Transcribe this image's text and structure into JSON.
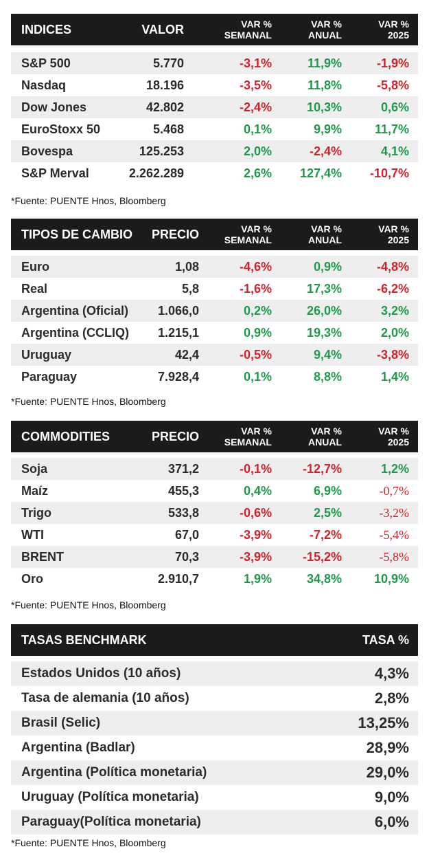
{
  "source_note": "*Fuente: PUENTE Hnos, Bloomberg",
  "indices": {
    "headers": {
      "name": "INDICES",
      "value": "VALOR",
      "weekly_1": "VAR %",
      "weekly_2": "SEMANAL",
      "annual_1": "VAR %",
      "annual_2": "ANUAL",
      "ytd_1": "VAR %",
      "ytd_2": "2025"
    },
    "rows": [
      {
        "name": "S&P 500",
        "value": "5.770",
        "weekly": "-3,1%",
        "annual": "11,9%",
        "ytd": "-1,9%"
      },
      {
        "name": "Nasdaq",
        "value": "18.196",
        "weekly": "-3,5%",
        "annual": "11,8%",
        "ytd": "-5,8%"
      },
      {
        "name": "Dow Jones",
        "value": "42.802",
        "weekly": "-2,4%",
        "annual": "10,3%",
        "ytd": "0,6%"
      },
      {
        "name": "EuroStoxx 50",
        "value": "5.468",
        "weekly": "0,1%",
        "annual": "9,9%",
        "ytd": "11,7%"
      },
      {
        "name": "Bovespa",
        "value": "125.253",
        "weekly": "2,0%",
        "annual": "-2,4%",
        "ytd": "4,1%"
      },
      {
        "name": "S&P Merval",
        "value": "2.262.289",
        "weekly": "2,6%",
        "annual": "127,4%",
        "ytd": "-10,7%"
      }
    ]
  },
  "fx": {
    "headers": {
      "name": "TIPOS DE CAMBIO",
      "value": "PRECIO",
      "weekly_1": "VAR %",
      "weekly_2": "SEMANAL",
      "annual_1": "VAR %",
      "annual_2": "ANUAL",
      "ytd_1": "VAR %",
      "ytd_2": "2025"
    },
    "rows": [
      {
        "name": "Euro",
        "value": "1,08",
        "weekly": "-4,6%",
        "annual": "0,9%",
        "ytd": "-4,8%"
      },
      {
        "name": "Real",
        "value": "5,8",
        "weekly": "-1,6%",
        "annual": "17,3%",
        "ytd": "-6,2%"
      },
      {
        "name": "Argentina (Oficial)",
        "value": "1.066,0",
        "weekly": "0,2%",
        "annual": "26,0%",
        "ytd": "3,2%"
      },
      {
        "name": "Argentina (CCLIQ)",
        "value": "1.215,1",
        "weekly": "0,9%",
        "annual": "19,3%",
        "ytd": "2,0%"
      },
      {
        "name": "Uruguay",
        "value": "42,4",
        "weekly": "-0,5%",
        "annual": "9,4%",
        "ytd": "-3,8%"
      },
      {
        "name": "Paraguay",
        "value": "7.928,4",
        "weekly": "0,1%",
        "annual": "8,8%",
        "ytd": "1,4%"
      }
    ]
  },
  "commodities": {
    "headers": {
      "name": "COMMODITIES",
      "value": "PRECIO",
      "weekly_1": "VAR %",
      "weekly_2": "SEMANAL",
      "annual_1": "VAR %",
      "annual_2": "ANUAL",
      "ytd_1": "VAR %",
      "ytd_2": "2025"
    },
    "rows": [
      {
        "name": "Soja",
        "value": "371,2",
        "weekly": "-0,1%",
        "annual": "-12,7%",
        "ytd": "1,2%"
      },
      {
        "name": "Maíz",
        "value": "455,3",
        "weekly": "0,4%",
        "annual": "6,9%",
        "ytd": "-0,7%"
      },
      {
        "name": "Trigo",
        "value": "533,8",
        "weekly": "-0,6%",
        "annual": "2,5%",
        "ytd": "-3,2%"
      },
      {
        "name": "WTI",
        "value": "67,0",
        "weekly": "-3,9%",
        "annual": "-7,2%",
        "ytd": "-5,4%"
      },
      {
        "name": "BRENT",
        "value": "70,3",
        "weekly": "-3,9%",
        "annual": "-15,2%",
        "ytd": "-5,8%"
      },
      {
        "name": "Oro",
        "value": "2.910,7",
        "weekly": "1,9%",
        "annual": "34,8%",
        "ytd": "10,9%"
      }
    ]
  },
  "rates": {
    "headers": {
      "name": "TASAS BENCHMARK",
      "rate": "TASA %"
    },
    "rows": [
      {
        "name": "Estados Unidos (10 años)",
        "rate": "4,3%"
      },
      {
        "name": "Tasa de alemania (10 años)",
        "rate": "2,8%"
      },
      {
        "name": "Brasil (Selic)",
        "rate": "13,25%"
      },
      {
        "name": "Argentina (Badlar)",
        "rate": "28,9%"
      },
      {
        "name": "Argentina (Política monetaria)",
        "rate": "29,0%"
      },
      {
        "name": "Uruguay (Política monetaria)",
        "rate": "9,0%"
      },
      {
        "name": "Paraguay(Política monetaria)",
        "rate": "6,0%"
      }
    ]
  },
  "colors": {
    "header_bg": "#1b1b1b",
    "positive": "#1e9a4a",
    "negative": "#d0232b",
    "row_alt": "#eeeeee"
  }
}
